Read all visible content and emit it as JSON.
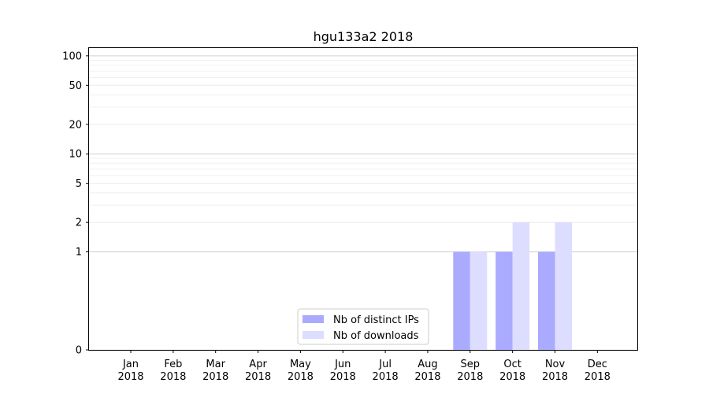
{
  "chart_data": {
    "type": "bar",
    "title": "hgu133a2 2018",
    "xlabel": "",
    "ylabel": "",
    "yscale": "symlog",
    "ylim": [
      0,
      120
    ],
    "y_ticks": [
      0,
      1,
      2,
      5,
      10,
      20,
      50,
      100
    ],
    "grid": true,
    "legend_position": "lower-center",
    "categories": [
      [
        "Jan",
        "2018"
      ],
      [
        "Feb",
        "2018"
      ],
      [
        "Mar",
        "2018"
      ],
      [
        "Apr",
        "2018"
      ],
      [
        "May",
        "2018"
      ],
      [
        "Jun",
        "2018"
      ],
      [
        "Jul",
        "2018"
      ],
      [
        "Aug",
        "2018"
      ],
      [
        "Sep",
        "2018"
      ],
      [
        "Oct",
        "2018"
      ],
      [
        "Nov",
        "2018"
      ],
      [
        "Dec",
        "2018"
      ]
    ],
    "series": [
      {
        "name": "Nb of distinct IPs",
        "color": "#aaaaff",
        "values": [
          0,
          0,
          0,
          0,
          0,
          0,
          0,
          0,
          1,
          1,
          1,
          0
        ]
      },
      {
        "name": "Nb of downloads",
        "color": "#ddddff",
        "values": [
          0,
          0,
          0,
          0,
          0,
          0,
          0,
          0,
          1,
          2,
          2,
          0
        ]
      }
    ]
  }
}
